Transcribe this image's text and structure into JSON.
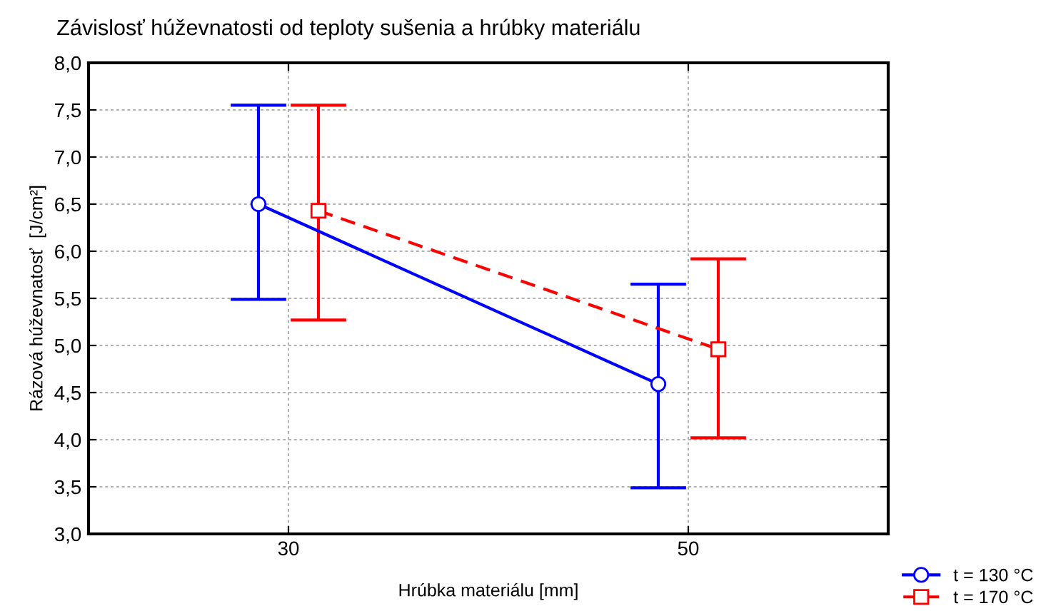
{
  "chart_data": {
    "type": "line",
    "title": "Závislosť húževnatosti od teploty sušenia a hrúbky materiálu",
    "xlabel": "Hrúbka materiálu [mm]",
    "ylabel": "Rázová húževnatosť  [J/cm²]",
    "xlim": [
      20,
      60
    ],
    "xticks": [
      30,
      50
    ],
    "ylim": [
      3.0,
      8.0
    ],
    "yticks": [
      {
        "value": 3.0,
        "label": "3,0"
      },
      {
        "value": 3.5,
        "label": "3,5"
      },
      {
        "value": 4.0,
        "label": "4,0"
      },
      {
        "value": 4.5,
        "label": "4,5"
      },
      {
        "value": 5.0,
        "label": "5,0"
      },
      {
        "value": 5.5,
        "label": "5,5"
      },
      {
        "value": 6.0,
        "label": "6,0"
      },
      {
        "value": 6.5,
        "label": "6,5"
      },
      {
        "value": 7.0,
        "label": "7,0"
      },
      {
        "value": 7.5,
        "label": "7,5"
      },
      {
        "value": 8.0,
        "label": "8,0"
      }
    ],
    "grid": true,
    "legend": "bottom right",
    "series": [
      {
        "name": "t = 130 °C",
        "color": "#0000ff",
        "x": [
          28.5,
          48.5
        ],
        "values": [
          6.5,
          4.59
        ],
        "errors": [
          [
            5.49,
            7.55
          ],
          [
            3.49,
            5.65
          ]
        ],
        "marker": "circle",
        "line_style": "solid"
      },
      {
        "name": "t = 170 °C",
        "color": "#ff0000",
        "x": [
          31.5,
          51.5
        ],
        "values": [
          6.43,
          4.96
        ],
        "errors": [
          [
            5.27,
            7.55
          ],
          [
            4.02,
            5.92
          ]
        ],
        "marker": "square",
        "line_style": "dashed"
      }
    ]
  }
}
